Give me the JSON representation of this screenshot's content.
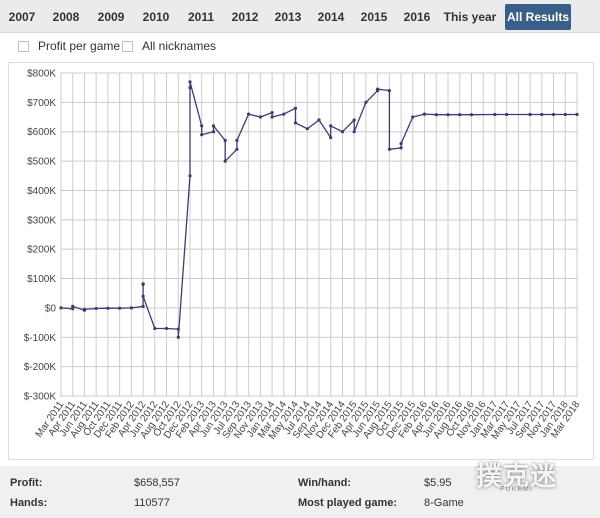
{
  "tabs": [
    {
      "label": "2007"
    },
    {
      "label": "2008"
    },
    {
      "label": "2009"
    },
    {
      "label": "2010"
    },
    {
      "label": "2011"
    },
    {
      "label": "2012"
    },
    {
      "label": "2013"
    },
    {
      "label": "2014"
    },
    {
      "label": "2015"
    },
    {
      "label": "2016"
    },
    {
      "label": "This year"
    },
    {
      "label": "All Results",
      "active": true
    }
  ],
  "options": {
    "profit_per_game": {
      "label": "Profit per game",
      "checked": false
    },
    "all_nicknames": {
      "label": "All nicknames",
      "checked": false
    }
  },
  "colors": {
    "line": "#3b3b7a",
    "active_tab": "#3a5e8a",
    "grid": "#cccccc"
  },
  "chart_data": {
    "type": "line",
    "y_tick_labels": [
      "$800K",
      "$700K",
      "$600K",
      "$500K",
      "$400K",
      "$300K",
      "$200K",
      "$100K",
      "$0",
      "$-100K",
      "$-200K",
      "$-300K"
    ],
    "ylim": [
      -300000,
      800000
    ],
    "x_tick_labels": [
      "Mar 2011",
      "Apr 2011",
      "Jun 2011",
      "Aug 2011",
      "Oct 2011",
      "Dec 2011",
      "Feb 2012",
      "Apr 2012",
      "Jun 2012",
      "Aug 2012",
      "Oct 2012",
      "Dec 2012",
      "Feb 2013",
      "Apr 2013",
      "Jun 2013",
      "Jul 2013",
      "Sep 2013",
      "Nov 2013",
      "Jan 2014",
      "Mar 2014",
      "May 2014",
      "Jul 2014",
      "Sep 2014",
      "Nov 2014",
      "Dec 2014",
      "Feb 2015",
      "Apr 2015",
      "Jun 2015",
      "Aug 2015",
      "Oct 2015",
      "Dec 2015",
      "Feb 2016",
      "Apr 2016",
      "Jun 2016",
      "Aug 2016",
      "Oct 2016",
      "Nov 2016",
      "Jan 2017",
      "Mar 2017",
      "May 2017",
      "Jul 2017",
      "Sep 2017",
      "Nov 2017",
      "Jan 2018",
      "Mar 2018"
    ],
    "grid": true,
    "series": [
      {
        "points": [
          [
            "Mar 2011",
            0
          ],
          [
            "Apr 2011",
            -3000
          ],
          [
            "Apr 2011",
            5000
          ],
          [
            "Jun 2011",
            -8000
          ],
          [
            "Jun 2011",
            -5000
          ],
          [
            "Aug 2011",
            -2000
          ],
          [
            "Oct 2011",
            -1000
          ],
          [
            "Dec 2011",
            -1000
          ],
          [
            "Feb 2012",
            0
          ],
          [
            "Apr 2012",
            5000
          ],
          [
            "Apr 2012",
            80000
          ],
          [
            "Apr 2012",
            82000
          ],
          [
            "Apr 2012",
            40000
          ],
          [
            "Jun 2012",
            -70000
          ],
          [
            "Aug 2012",
            -70000
          ],
          [
            "Oct 2012",
            -72000
          ],
          [
            "Oct 2012",
            -100000
          ],
          [
            "Dec 2012",
            450000
          ],
          [
            "Dec 2012",
            750000
          ],
          [
            "Dec 2012",
            770000
          ],
          [
            "Feb 2013",
            620000
          ],
          [
            "Feb 2013",
            590000
          ],
          [
            "Apr 2013",
            600000
          ],
          [
            "Apr 2013",
            620000
          ],
          [
            "Jun 2013",
            570000
          ],
          [
            "Jun 2013",
            500000
          ],
          [
            "Jul 2013",
            540000
          ],
          [
            "Jul 2013",
            570000
          ],
          [
            "Sep 2013",
            660000
          ],
          [
            "Nov 2013",
            650000
          ],
          [
            "Jan 2014",
            665000
          ],
          [
            "Jan 2014",
            650000
          ],
          [
            "Mar 2014",
            660000
          ],
          [
            "May 2014",
            680000
          ],
          [
            "May 2014",
            630000
          ],
          [
            "Jul 2014",
            610000
          ],
          [
            "Sep 2014",
            640000
          ],
          [
            "Nov 2014",
            580000
          ],
          [
            "Nov 2014",
            620000
          ],
          [
            "Dec 2014",
            600000
          ],
          [
            "Feb 2015",
            640000
          ],
          [
            "Feb 2015",
            600000
          ],
          [
            "Apr 2015",
            700000
          ],
          [
            "Jun 2015",
            740000
          ],
          [
            "Jun 2015",
            745000
          ],
          [
            "Aug 2015",
            740000
          ],
          [
            "Aug 2015",
            540000
          ],
          [
            "Oct 2015",
            545000
          ],
          [
            "Oct 2015",
            560000
          ],
          [
            "Dec 2015",
            650000
          ],
          [
            "Feb 2016",
            660000
          ],
          [
            "Apr 2016",
            658000
          ],
          [
            "Jun 2016",
            658000
          ],
          [
            "Aug 2016",
            658000
          ],
          [
            "Oct 2016",
            658000
          ],
          [
            "Jan 2017",
            658557
          ],
          [
            "Mar 2017",
            658557
          ],
          [
            "Jul 2017",
            658557
          ],
          [
            "Sep 2017",
            658557
          ],
          [
            "Nov 2017",
            658557
          ],
          [
            "Jan 2018",
            658557
          ],
          [
            "Mar 2018",
            658557
          ]
        ]
      }
    ]
  },
  "footer": {
    "profit_label": "Profit:",
    "profit_value": "$658,557",
    "hands_label": "Hands:",
    "hands_value": "110577",
    "winhand_label": "Win/hand:",
    "winhand_value": "$5.95",
    "mostplayed_label": "Most played game:",
    "mostplayed_value": "8-Game"
  },
  "watermark": {
    "text": "撲克迷",
    "sub": "PUKEMI"
  }
}
